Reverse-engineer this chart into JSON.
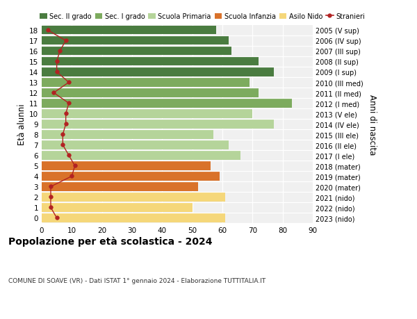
{
  "ages": [
    18,
    17,
    16,
    15,
    14,
    13,
    12,
    11,
    10,
    9,
    8,
    7,
    6,
    5,
    4,
    3,
    2,
    1,
    0
  ],
  "bar_values": [
    58,
    62,
    63,
    72,
    77,
    69,
    72,
    83,
    70,
    77,
    57,
    62,
    66,
    56,
    59,
    52,
    61,
    50,
    61
  ],
  "stranieri": [
    2,
    8,
    6,
    5,
    5,
    9,
    4,
    9,
    8,
    8,
    7,
    7,
    9,
    11,
    10,
    3,
    3,
    3,
    5
  ],
  "right_labels": [
    "2005 (V sup)",
    "2006 (IV sup)",
    "2007 (III sup)",
    "2008 (II sup)",
    "2009 (I sup)",
    "2010 (III med)",
    "2011 (II med)",
    "2012 (I med)",
    "2013 (V ele)",
    "2014 (IV ele)",
    "2015 (III ele)",
    "2016 (II ele)",
    "2017 (I ele)",
    "2018 (mater)",
    "2019 (mater)",
    "2020 (mater)",
    "2021 (nido)",
    "2022 (nido)",
    "2023 (nido)"
  ],
  "bar_colors": [
    "#4a7c40",
    "#4a7c40",
    "#4a7c40",
    "#4a7c40",
    "#4a7c40",
    "#7dab5e",
    "#7dab5e",
    "#7dab5e",
    "#b5d49a",
    "#b5d49a",
    "#b5d49a",
    "#b5d49a",
    "#b5d49a",
    "#d9722a",
    "#d9722a",
    "#d9722a",
    "#f5d77a",
    "#f5d77a",
    "#f5d77a"
  ],
  "legend_labels": [
    "Sec. II grado",
    "Sec. I grado",
    "Scuola Primaria",
    "Scuola Infanzia",
    "Asilo Nido",
    "Stranieri"
  ],
  "legend_colors": [
    "#4a7c40",
    "#7dab5e",
    "#b5d49a",
    "#d9722a",
    "#f5d77a",
    "#b22222"
  ],
  "stranieri_color": "#b22222",
  "title": "Popolazione per età scolastica - 2024",
  "subtitle": "COMUNE DI SOAVE (VR) - Dati ISTAT 1° gennaio 2024 - Elaborazione TUTTITALIA.IT",
  "ylabel_left": "Età alunni",
  "ylabel_right": "Anni di nascita",
  "xlim": [
    0,
    90
  ],
  "xticks": [
    0,
    10,
    20,
    30,
    40,
    50,
    60,
    70,
    80,
    90
  ]
}
